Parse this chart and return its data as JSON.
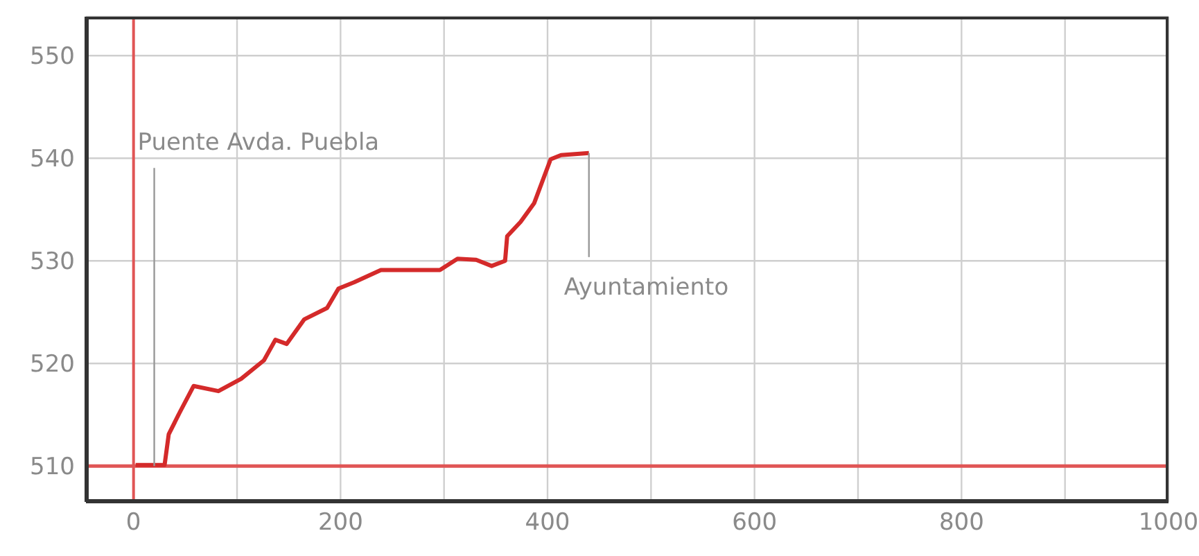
{
  "chart_data": {
    "type": "line",
    "x": [
      2,
      30,
      34,
      45,
      58,
      82,
      104,
      126,
      137,
      148,
      165,
      187,
      198,
      213,
      239,
      296,
      313,
      331,
      346,
      359,
      361,
      374,
      387,
      403,
      413,
      440
    ],
    "series": [
      {
        "color": "#d42a2a",
        "values": [
          510.1,
          510.1,
          513.1,
          515.3,
          517.8,
          517.3,
          518.5,
          520.3,
          522.3,
          521.9,
          524.3,
          525.4,
          527.3,
          527.9,
          529.1,
          529.1,
          530.2,
          530.1,
          529.5,
          530,
          532.4,
          533.8,
          535.6,
          539.9,
          540.3,
          540.5
        ]
      }
    ],
    "xlim": [
      -46,
      1000
    ],
    "xticks": [
      0,
      {
        "value": 100,
        "label": null
      },
      200,
      {
        "value": 300,
        "label": null
      },
      400,
      {
        "value": 500,
        "label": null
      },
      600,
      {
        "value": 700,
        "label": null
      },
      800,
      {
        "value": 900,
        "label": null
      },
      1000
    ],
    "ylim": [
      506.5,
      553.8
    ],
    "yticks": [
      510,
      520,
      530,
      540,
      550
    ],
    "grid": true,
    "marker": "none",
    "line_style": "solid",
    "ref_lines": [
      {
        "axis": "x",
        "value": 0,
        "color": "#e05555"
      },
      {
        "axis": "y",
        "value": 510,
        "color": "#e05555"
      }
    ],
    "annotations": [
      {
        "text": "Puente Avda. Puebla",
        "x": 20,
        "y": 510
      },
      {
        "text": "Ayuntamiento",
        "x": 440,
        "y": 540.5
      }
    ]
  }
}
